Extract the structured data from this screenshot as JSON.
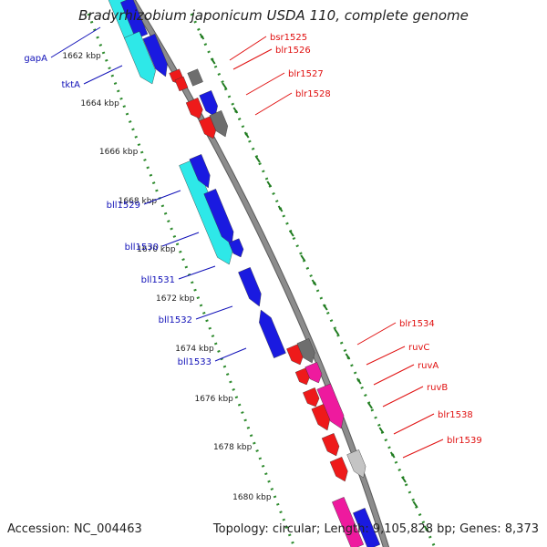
{
  "header": {
    "title": "Bradyrhizobium japonicum USDA 110, complete genome"
  },
  "footer": {
    "accession": "Accession: NC_004463",
    "summary": "Topology: circular; Length: 9,105,828 bp; Genes: 8,373"
  },
  "colors": {
    "background": "#ffffff",
    "backbone": "#8c8c8c",
    "tick_dots": "#2e8b2e",
    "tick_major": "#1f7a1f",
    "label_left": "#1010b8",
    "label_right": "#e01010",
    "gene_blue": "#1a1ae0",
    "gene_cyan": "#2ee8e8",
    "gene_red": "#ee1a1a",
    "gene_magenta": "#ee1a9e",
    "gene_gray": "#6e6e6e",
    "gene_lightgray": "#c4c4c4"
  },
  "ticks": [
    "1662 kbp",
    "1664 kbp",
    "1666 kbp",
    "1668 kbp",
    "1670 kbp",
    "1672 kbp",
    "1674 kbp",
    "1676 kbp",
    "1678 kbp",
    "1680 kbp"
  ],
  "genes_left": [
    "gapA",
    "tktA",
    "bll1529",
    "bll1530",
    "bll1531",
    "bll1532",
    "bll1533"
  ],
  "genes_right": [
    "bsr1525",
    "blr1526",
    "blr1527",
    "blr1528",
    "blr1534",
    "ruvC",
    "ruvA",
    "ruvB",
    "blr1538",
    "blr1539"
  ]
}
